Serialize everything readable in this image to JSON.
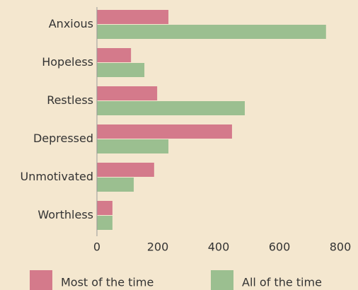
{
  "chart_data": {
    "type": "bar",
    "orientation": "horizontal",
    "categories": [
      "Anxious",
      "Hopeless",
      "Restless",
      "Depressed",
      "Unmotivated",
      "Worthless"
    ],
    "series": [
      {
        "name": "Most of the time",
        "color": "#d47a8b",
        "values": [
          235,
          112,
          198,
          444,
          188,
          51
        ]
      },
      {
        "name": "All of the time",
        "color": "#9bbf90",
        "values": [
          753,
          156,
          486,
          235,
          121,
          51
        ]
      }
    ],
    "xlim": [
      0,
      800
    ],
    "xticks": [
      0,
      200,
      400,
      600,
      800
    ],
    "legend": "bottom"
  }
}
